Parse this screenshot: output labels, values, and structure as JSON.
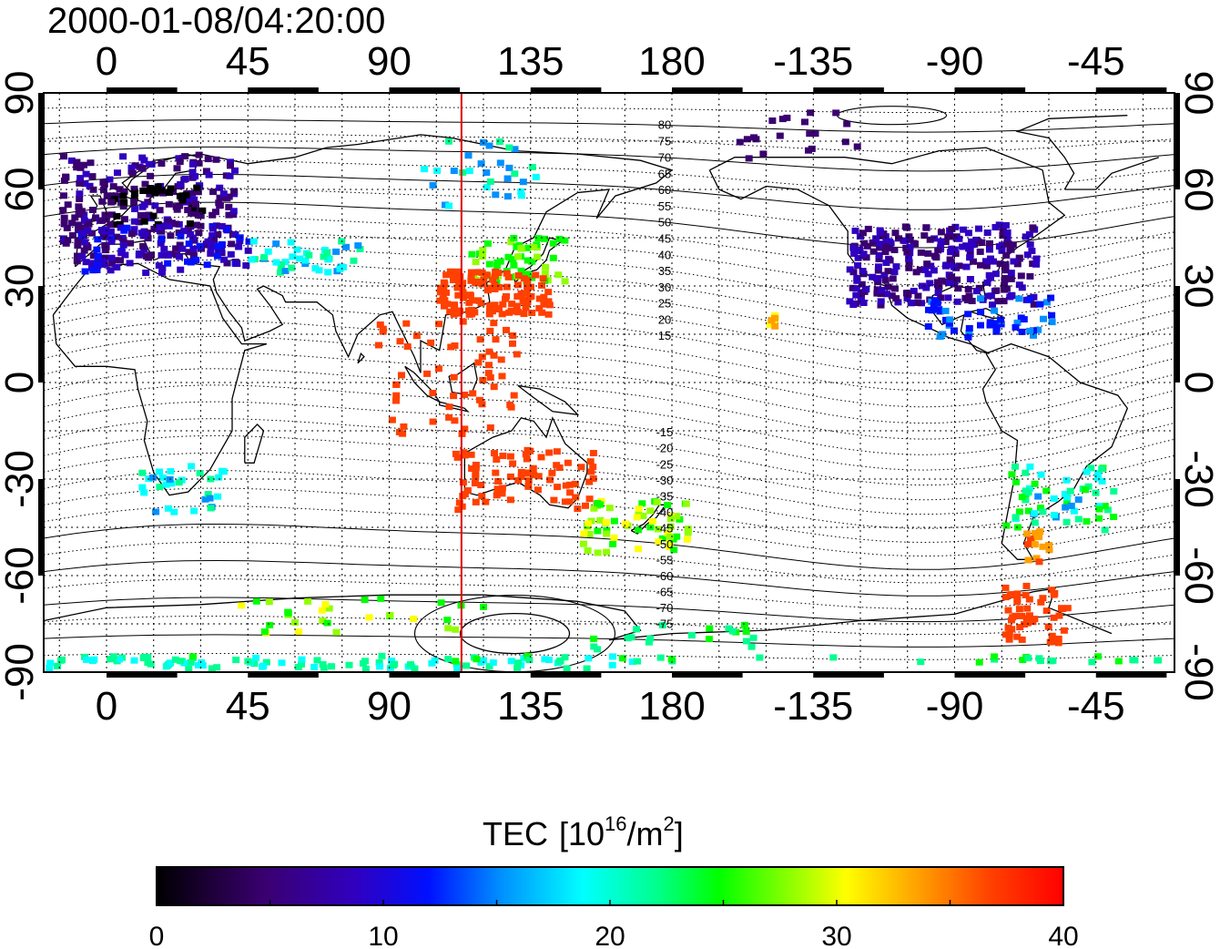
{
  "title": "2000-01-08/04:20:00",
  "map": {
    "lon_ticks": [
      "0",
      "45",
      "90",
      "135",
      "180",
      "-135",
      "-90",
      "-45"
    ],
    "lat_ticks_left": [
      "90",
      "60",
      "30",
      "0",
      "-30",
      "-60",
      "-90"
    ],
    "lat_ticks_right": [
      "90",
      "60",
      "30",
      "0",
      "-30",
      "-60",
      "-90"
    ],
    "marker_line_lon": 113,
    "marker_line_color": "#e00000",
    "contour_labels": [
      "80",
      "75",
      "70",
      "65",
      "60",
      "55",
      "50",
      "45",
      "40",
      "35",
      "30",
      "25",
      "20",
      "15",
      "-15",
      "-20",
      "-25",
      "-30",
      "-35",
      "-40",
      "-45",
      "-50",
      "-55",
      "-60",
      "-65",
      "-70",
      "-75"
    ],
    "grid": true
  },
  "colorbar": {
    "title": "TEC",
    "unit": "[10",
    "unit_sup": "16",
    "unit_mid": "/m",
    "unit_sup2": "2",
    "unit_end": "]",
    "min": 0,
    "max": 40,
    "ticks": [
      "0",
      "10",
      "20",
      "30",
      "40"
    ],
    "colors": [
      "#000000",
      "#2a0050",
      "#4000a0",
      "#2000e0",
      "#0040ff",
      "#00c0ff",
      "#00ffff",
      "#00ff80",
      "#00ff00",
      "#80ff00",
      "#ffff00",
      "#ffa000",
      "#ff4000",
      "#ff0000"
    ]
  }
}
